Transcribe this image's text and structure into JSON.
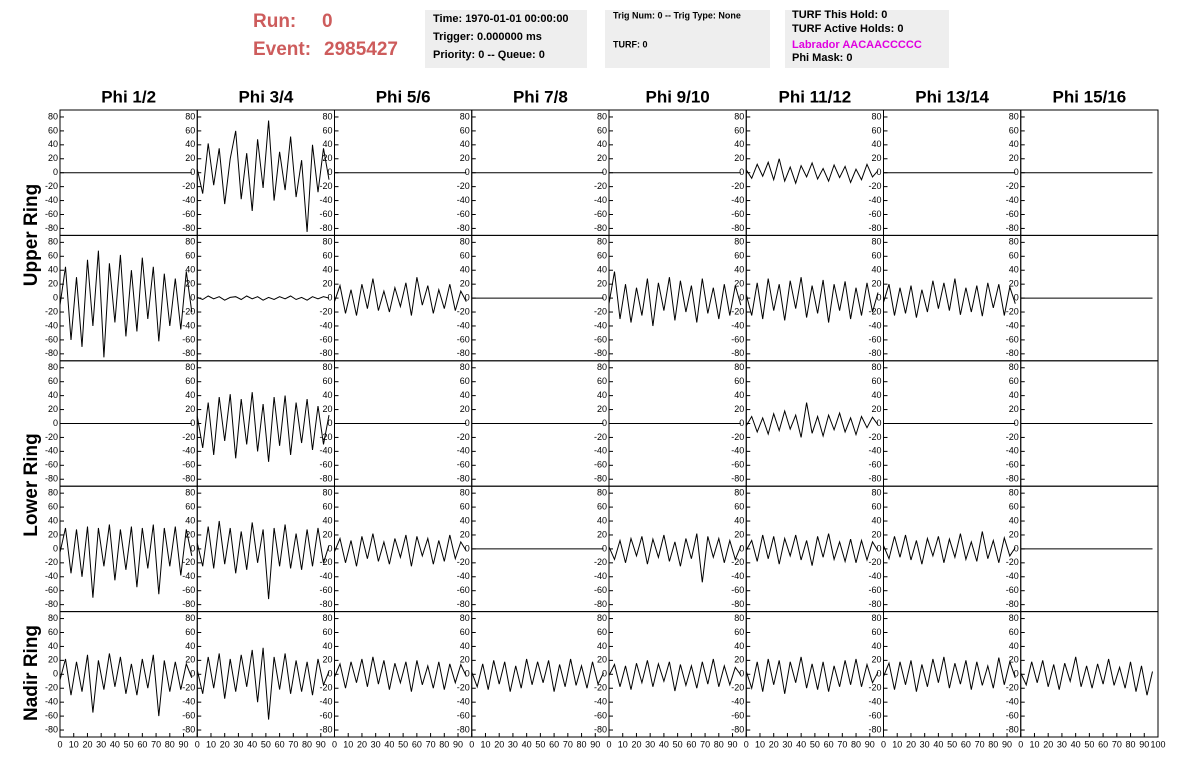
{
  "header": {
    "run_label": "Run:",
    "run": "0",
    "event_label": "Event:",
    "event": "2985427"
  },
  "info": [
    [
      "Time: 1970-01-01 00:00:00",
      "Trigger: 0.000000 ms",
      "Priority: 0 -- Queue: 0"
    ],
    [
      "Trig Num: 0 -- Trig Type: None",
      "TURF: 0"
    ],
    [
      "TURF This Hold: 0",
      "TURF Active Holds: 0",
      "Labrador AACAACCCCC",
      "Phi Mask: 0"
    ]
  ],
  "columns": [
    "Phi 1/2",
    "Phi 3/4",
    "Phi 5/6",
    "Phi 7/8",
    "Phi 9/10",
    "Phi 11/12",
    "Phi 13/14",
    "Phi 15/16"
  ],
  "rows": [
    "Upper Ring",
    "Lower Ring",
    "Nadir Ring"
  ],
  "chart_data": {
    "type": "line",
    "xlim": [
      0,
      100
    ],
    "ylim": [
      -90,
      90
    ],
    "xticks": [
      0,
      10,
      20,
      30,
      40,
      50,
      60,
      70,
      80,
      90,
      100
    ],
    "yticks": [
      -80,
      -60,
      -40,
      -20,
      0,
      20,
      40,
      60,
      80
    ],
    "x": [
      0,
      4,
      8,
      12,
      16,
      20,
      24,
      28,
      32,
      36,
      40,
      44,
      48,
      52,
      56,
      60,
      64,
      68,
      72,
      76,
      80,
      84,
      88,
      92,
      96
    ],
    "waveforms": [
      [
        [
          0,
          0,
          0,
          0,
          0,
          0,
          0,
          0,
          0,
          0,
          0,
          0,
          0,
          0,
          0,
          0,
          0,
          0,
          0,
          0,
          0,
          0,
          0,
          0,
          0
        ],
        [
          5,
          -30,
          42,
          -18,
          35,
          -45,
          20,
          60,
          -38,
          28,
          -55,
          48,
          -22,
          75,
          -40,
          30,
          -25,
          52,
          -35,
          18,
          -85,
          40,
          -28,
          35,
          -10
        ],
        [
          0,
          0,
          0,
          0,
          0,
          0,
          0,
          0,
          0,
          0,
          0,
          0,
          0,
          0,
          0,
          0,
          0,
          0,
          0,
          0,
          0,
          0,
          0,
          0,
          0
        ],
        [
          0,
          0,
          0,
          0,
          0,
          0,
          0,
          0,
          0,
          0,
          0,
          0,
          0,
          0,
          0,
          0,
          0,
          0,
          0,
          0,
          0,
          0,
          0,
          0,
          0
        ],
        [
          0,
          0,
          0,
          0,
          0,
          0,
          0,
          0,
          0,
          0,
          0,
          0,
          0,
          0,
          0,
          0,
          0,
          0,
          0,
          0,
          0,
          0,
          0,
          0,
          0
        ],
        [
          4,
          -8,
          12,
          -5,
          15,
          -10,
          20,
          -12,
          8,
          -15,
          10,
          -6,
          14,
          -9,
          6,
          -12,
          11,
          -7,
          9,
          -14,
          5,
          -10,
          12,
          -6,
          3
        ],
        [
          0,
          0,
          0,
          0,
          0,
          0,
          0,
          0,
          0,
          0,
          0,
          0,
          0,
          0,
          0,
          0,
          0,
          0,
          0,
          0,
          0,
          0,
          0,
          0,
          0
        ],
        [
          0,
          0,
          0,
          0,
          0,
          0,
          0,
          0,
          0,
          0,
          0,
          0,
          0,
          0,
          0,
          0,
          0,
          0,
          0,
          0,
          0,
          0,
          0,
          0,
          0
        ]
      ],
      [
        [
          -10,
          45,
          -60,
          30,
          -70,
          55,
          -40,
          68,
          -85,
          50,
          -35,
          62,
          -55,
          40,
          -48,
          58,
          -30,
          45,
          -62,
          35,
          -40,
          28,
          -45,
          38,
          -20
        ],
        [
          1,
          -2,
          3,
          -1,
          2,
          -3,
          1,
          2,
          -2,
          3,
          -1,
          2,
          -3,
          1,
          -2,
          2,
          -1,
          3,
          -2,
          1,
          -3,
          2,
          -1,
          2,
          0
        ],
        [
          -5,
          18,
          -22,
          12,
          -25,
          20,
          -15,
          28,
          -18,
          10,
          -20,
          15,
          -12,
          22,
          -25,
          30,
          -10,
          18,
          -22,
          12,
          -15,
          20,
          -18,
          10,
          -5
        ],
        [
          0,
          0,
          0,
          0,
          0,
          0,
          0,
          0,
          0,
          0,
          0,
          0,
          0,
          0,
          0,
          0,
          0,
          0,
          0,
          0,
          0,
          0,
          0,
          0,
          0
        ],
        [
          -8,
          38,
          -30,
          20,
          -35,
          15,
          -25,
          28,
          -40,
          22,
          -18,
          30,
          -32,
          25,
          -20,
          18,
          -35,
          28,
          -22,
          15,
          -30,
          20,
          -25,
          18,
          -10
        ],
        [
          5,
          -25,
          22,
          -30,
          28,
          -18,
          20,
          -32,
          25,
          -15,
          30,
          -28,
          18,
          -22,
          26,
          -35,
          20,
          -18,
          24,
          -30,
          15,
          -25,
          22,
          -20,
          8
        ],
        [
          -6,
          20,
          -25,
          15,
          -22,
          18,
          -28,
          12,
          -20,
          25,
          -15,
          22,
          -18,
          28,
          -24,
          15,
          -20,
          18,
          -26,
          22,
          -14,
          20,
          -25,
          16,
          -8
        ],
        [
          0,
          0,
          0,
          0,
          0,
          0,
          0,
          0,
          0,
          0,
          0,
          0,
          0,
          0,
          0,
          0,
          0,
          0,
          0,
          0,
          0,
          0,
          0,
          0,
          0
        ]
      ],
      [
        [
          0,
          0,
          0,
          0,
          0,
          0,
          0,
          0,
          0,
          0,
          0,
          0,
          0,
          0,
          0,
          0,
          0,
          0,
          0,
          0,
          0,
          0,
          0,
          0,
          0
        ],
        [
          10,
          -35,
          30,
          -45,
          38,
          -25,
          42,
          -50,
          35,
          -30,
          45,
          -40,
          28,
          -55,
          38,
          -32,
          40,
          -45,
          30,
          -28,
          35,
          -38,
          25,
          -30,
          12
        ],
        [
          0,
          0,
          0,
          0,
          0,
          0,
          0,
          0,
          0,
          0,
          0,
          0,
          0,
          0,
          0,
          0,
          0,
          0,
          0,
          0,
          0,
          0,
          0,
          0,
          0
        ],
        [
          0,
          0,
          0,
          0,
          0,
          0,
          0,
          0,
          0,
          0,
          0,
          0,
          0,
          0,
          0,
          0,
          0,
          0,
          0,
          0,
          0,
          0,
          0,
          0,
          0
        ],
        [
          0,
          0,
          0,
          0,
          0,
          0,
          0,
          0,
          0,
          0,
          0,
          0,
          0,
          0,
          0,
          0,
          0,
          0,
          0,
          0,
          0,
          0,
          0,
          0,
          0
        ],
        [
          -3,
          10,
          -12,
          8,
          -15,
          14,
          -10,
          18,
          -8,
          12,
          -20,
          30,
          -14,
          10,
          -18,
          12,
          -9,
          15,
          -12,
          8,
          -16,
          10,
          -6,
          9,
          -2
        ],
        [
          0,
          0,
          0,
          0,
          0,
          0,
          0,
          0,
          0,
          0,
          0,
          0,
          0,
          0,
          0,
          0,
          0,
          0,
          0,
          0,
          0,
          0,
          0,
          0,
          0
        ],
        [
          0,
          0,
          0,
          0,
          0,
          0,
          0,
          0,
          0,
          0,
          0,
          0,
          0,
          0,
          0,
          0,
          0,
          0,
          0,
          0,
          0,
          0,
          0,
          0,
          0
        ]
      ],
      [
        [
          -5,
          30,
          -35,
          28,
          -40,
          32,
          -70,
          30,
          -25,
          35,
          -45,
          28,
          -30,
          32,
          -55,
          30,
          -28,
          35,
          -65,
          30,
          -25,
          32,
          -38,
          28,
          -10
        ],
        [
          8,
          -25,
          32,
          -28,
          40,
          -22,
          30,
          -35,
          25,
          -30,
          38,
          -20,
          28,
          -72,
          30,
          -25,
          35,
          -28,
          22,
          -30,
          28,
          -25,
          30,
          -20,
          5
        ],
        [
          -4,
          15,
          -20,
          12,
          -25,
          18,
          -14,
          22,
          -18,
          10,
          -22,
          15,
          -12,
          20,
          -25,
          18,
          -10,
          15,
          -22,
          12,
          -18,
          20,
          -14,
          10,
          -3
        ],
        [
          0,
          0,
          0,
          0,
          0,
          0,
          0,
          0,
          0,
          0,
          0,
          0,
          0,
          0,
          0,
          0,
          0,
          0,
          0,
          0,
          0,
          0,
          0,
          0,
          0
        ],
        [
          3,
          -15,
          12,
          -20,
          15,
          -10,
          18,
          -22,
          14,
          -12,
          20,
          -18,
          10,
          -25,
          15,
          -14,
          22,
          -48,
          18,
          -12,
          15,
          -20,
          12,
          -15,
          4
        ],
        [
          -2,
          12,
          -18,
          20,
          -14,
          18,
          -22,
          15,
          -10,
          20,
          -16,
          12,
          -24,
          18,
          -12,
          22,
          -15,
          10,
          -18,
          14,
          -20,
          12,
          -16,
          10,
          -3
        ],
        [
          5,
          -14,
          18,
          -12,
          20,
          -16,
          12,
          -22,
          15,
          -10,
          18,
          -20,
          14,
          -12,
          22,
          -15,
          10,
          -18,
          25,
          -14,
          12,
          -20,
          16,
          -10,
          2
        ],
        [
          0,
          0,
          0,
          0,
          0,
          0,
          0,
          0,
          0,
          0,
          0,
          0,
          0,
          0,
          0,
          0,
          0,
          0,
          0,
          0,
          0,
          0,
          0,
          0,
          0
        ]
      ],
      [
        [
          -8,
          22,
          -30,
          18,
          -25,
          28,
          -55,
          20,
          -22,
          30,
          -18,
          25,
          -28,
          15,
          -30,
          22,
          -20,
          28,
          -60,
          20,
          -25,
          18,
          -22,
          15,
          -5
        ],
        [
          6,
          -28,
          25,
          -20,
          30,
          -35,
          22,
          -25,
          28,
          -18,
          35,
          -40,
          38,
          -65,
          25,
          -22,
          30,
          -28,
          20,
          -25,
          18,
          -30,
          22,
          -15,
          4
        ],
        [
          -4,
          15,
          -20,
          18,
          -12,
          22,
          -18,
          25,
          -14,
          20,
          -22,
          16,
          -12,
          18,
          -25,
          20,
          -15,
          12,
          -20,
          18,
          -22,
          15,
          -12,
          14,
          -3
        ],
        [
          3,
          -18,
          15,
          -22,
          20,
          -14,
          18,
          -25,
          12,
          -20,
          22,
          -15,
          18,
          -12,
          20,
          -25,
          14,
          -18,
          22,
          -16,
          12,
          -20,
          18,
          -14,
          2
        ],
        [
          -2,
          14,
          -18,
          12,
          -22,
          16,
          -12,
          20,
          -18,
          15,
          -10,
          18,
          -24,
          14,
          -16,
          12,
          -20,
          18,
          -14,
          22,
          -18,
          12,
          -15,
          10,
          -1
        ],
        [
          4,
          -20,
          18,
          -25,
          22,
          -15,
          20,
          -28,
          18,
          -12,
          25,
          -20,
          15,
          -22,
          18,
          -25,
          12,
          -18,
          20,
          -15,
          22,
          -18,
          14,
          -12,
          3
        ],
        [
          -3,
          16,
          -22,
          18,
          -15,
          20,
          -25,
          14,
          -18,
          22,
          -12,
          25,
          -20,
          16,
          -14,
          20,
          -22,
          18,
          -16,
          12,
          -20,
          24,
          -15,
          18,
          -5
        ],
        [
          2,
          -15,
          18,
          -12,
          20,
          -18,
          14,
          -22,
          16,
          -10,
          25,
          -18,
          12,
          -20,
          15,
          -14,
          22,
          -16,
          10,
          -20,
          18,
          -25,
          12,
          -30,
          4
        ]
      ]
    ]
  }
}
